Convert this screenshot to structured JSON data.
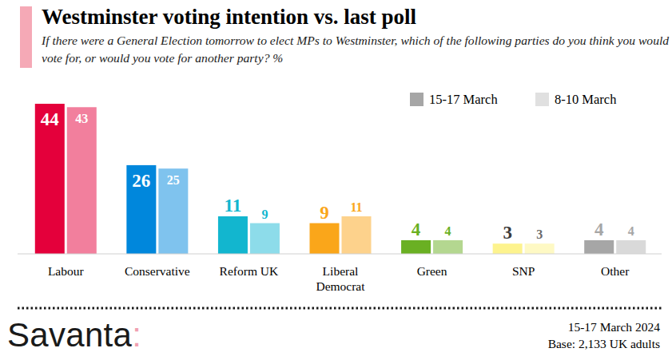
{
  "chart_data": {
    "type": "bar",
    "title": "Westminster voting intention vs. last poll",
    "subtitle": "If there were a General Election tomorrow to elect MPs to Westminster, which of the following parties do you think you would vote for, or would you vote for another party? %",
    "categories": [
      "Labour",
      "Conservative",
      "Reform UK",
      "Liberal Democrat",
      "Green",
      "SNP",
      "Other"
    ],
    "series": [
      {
        "name": "15-17 March",
        "color": "#a6a6a6",
        "colors": [
          "#e4003b",
          "#0087dc",
          "#12b6cf",
          "#faa61a",
          "#6ab023",
          "#fdf38e",
          "#a6a6a6"
        ],
        "values": [
          44,
          26,
          11,
          9,
          4,
          3,
          4
        ]
      },
      {
        "name": "8-10 March",
        "color": "#e0e0e0",
        "colors": [
          "#f27f9d",
          "#7fc3ee",
          "#8ddcea",
          "#fdd28c",
          "#b4d790",
          "#fef9c4",
          "#d9d9d9"
        ],
        "values": [
          43,
          25,
          9,
          11,
          4,
          3,
          4
        ]
      }
    ],
    "ylim": [
      0,
      44
    ],
    "data_labels": true,
    "tick_labels": "x",
    "grid": false,
    "legend": "top-right",
    "source": "Savanta:",
    "annotations": [
      "15-17 March 2024",
      "Base: 2,133 UK adults"
    ]
  }
}
